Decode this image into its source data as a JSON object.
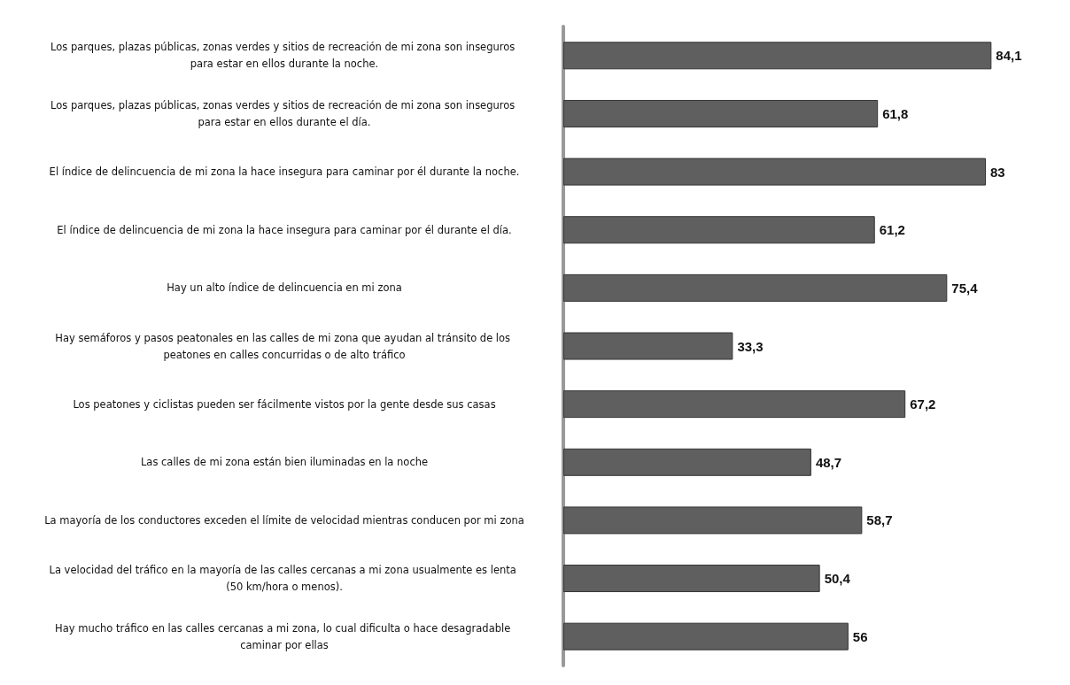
{
  "chart_data": {
    "type": "bar",
    "orientation": "horizontal",
    "color": "#5f5f5f",
    "categories": [
      "Los parques, plazas públicas, zonas verdes y sitios de recreación de mi zona son inseguros para estar en ellos durante la noche.",
      "Los parques, plazas públicas, zonas verdes y sitios de recreación de mi zona son inseguros para estar en ellos durante el día.",
      "El índice de delincuencia de mi zona la hace insegura para caminar por él durante la noche.",
      "El índice de delincuencia de mi zona la hace insegura para caminar por él durante el día.",
      "Hay un alto índice de delincuencia en mi zona",
      "Hay semáforos y pasos peatonales en las calles de mi zona que ayudan al tránsito de los peatones en calles concurridas o de alto tráfico",
      "Los peatones y ciclistas pueden ser fácilmente vistos por la gente desde sus casas",
      "Las calles de mi zona están bien iluminadas en la noche",
      "La mayoría de los conductores exceden el límite de velocidad mientras conducen por mi zona",
      "La velocidad del tráfico en la mayoría de las calles cercanas a mi zona usualmente es lenta (50 km/hora o menos).",
      "Hay mucho tráfico en las calles cercanas a mi zona, lo cual dificulta o hace desagradable caminar por ellas"
    ],
    "values": [
      84.1,
      61.8,
      83,
      61.2,
      75.4,
      33.3,
      67.2,
      48.7,
      58.7,
      50.4,
      56
    ],
    "value_labels": [
      "84,1",
      "61,8",
      "83",
      "61,2",
      "75,4",
      "33,3",
      "67,2",
      "48,7",
      "58,7",
      "50,4",
      "56"
    ]
  }
}
